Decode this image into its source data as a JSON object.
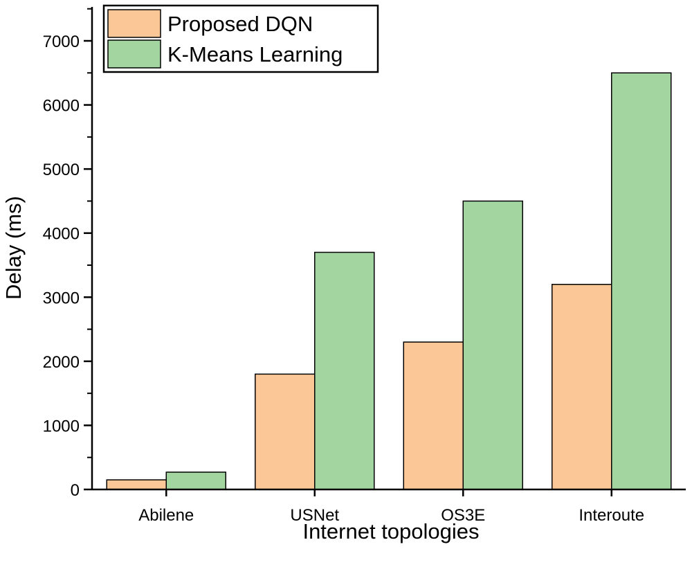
{
  "chart_data": {
    "type": "bar",
    "categories": [
      "Abilene",
      "USNet",
      "OS3E",
      "Interoute"
    ],
    "series": [
      {
        "name": "Proposed DQN",
        "values": [
          150,
          1800,
          2300,
          3200
        ],
        "color": "#fbc796"
      },
      {
        "name": "K-Means Learning",
        "values": [
          270,
          3700,
          4500,
          6500
        ],
        "color": "#a2d5a0"
      }
    ],
    "xlabel": "Internet topologies",
    "ylabel": "Delay (ms)",
    "ylim": [
      0,
      7500
    ],
    "yticks": [
      0,
      1000,
      2000,
      3000,
      4000,
      5000,
      6000,
      7000
    ],
    "grid": false,
    "legend": "top-left"
  }
}
